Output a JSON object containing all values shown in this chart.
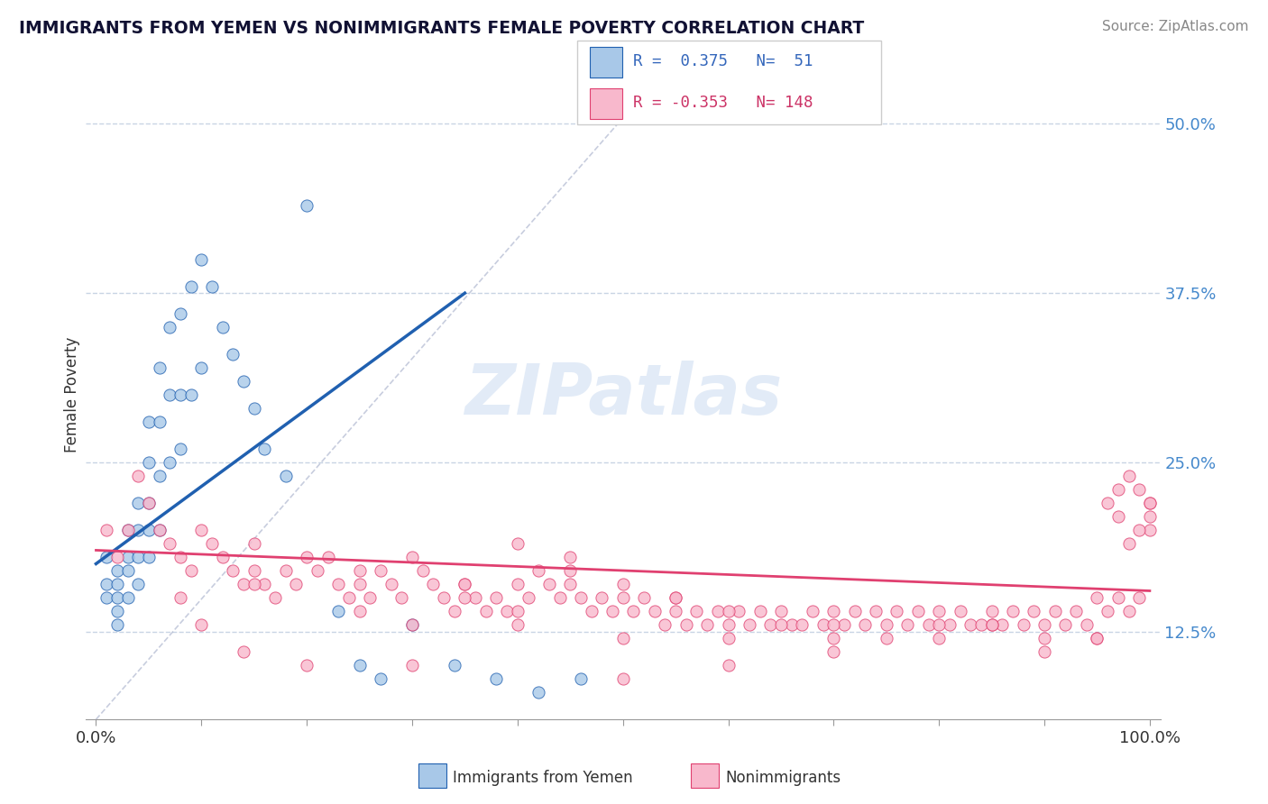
{
  "title": "IMMIGRANTS FROM YEMEN VS NONIMMIGRANTS FEMALE POVERTY CORRELATION CHART",
  "source": "Source: ZipAtlas.com",
  "ylabel": "Female Poverty",
  "xlim": [
    -0.01,
    1.01
  ],
  "ylim": [
    0.06,
    0.54
  ],
  "ytick_vals": [
    0.125,
    0.25,
    0.375,
    0.5
  ],
  "ytick_labels": [
    "12.5%",
    "25.0%",
    "37.5%",
    "50.0%"
  ],
  "xtick_vals": [
    0.0,
    0.1,
    0.2,
    0.3,
    0.4,
    0.5,
    0.6,
    0.7,
    0.8,
    0.9,
    1.0
  ],
  "xtick_labels": [
    "0.0%",
    "",
    "",
    "",
    "",
    "",
    "",
    "",
    "",
    "",
    "100.0%"
  ],
  "color_blue": "#a8c8e8",
  "color_pink": "#f8b8cc",
  "line_blue": "#2060b0",
  "line_pink": "#e04070",
  "line_diag": "#b0b8d0",
  "watermark": "ZIPatlas",
  "background_color": "#ffffff",
  "grid_color": "#c8d4e4",
  "blue_x": [
    0.01,
    0.01,
    0.01,
    0.02,
    0.02,
    0.02,
    0.02,
    0.02,
    0.03,
    0.03,
    0.03,
    0.03,
    0.04,
    0.04,
    0.04,
    0.04,
    0.05,
    0.05,
    0.05,
    0.05,
    0.05,
    0.06,
    0.06,
    0.06,
    0.06,
    0.07,
    0.07,
    0.07,
    0.08,
    0.08,
    0.08,
    0.09,
    0.09,
    0.1,
    0.1,
    0.11,
    0.12,
    0.13,
    0.14,
    0.15,
    0.16,
    0.18,
    0.2,
    0.23,
    0.25,
    0.27,
    0.3,
    0.34,
    0.38,
    0.42,
    0.46
  ],
  "blue_y": [
    0.18,
    0.16,
    0.15,
    0.17,
    0.16,
    0.15,
    0.14,
    0.13,
    0.2,
    0.18,
    0.17,
    0.15,
    0.22,
    0.2,
    0.18,
    0.16,
    0.28,
    0.25,
    0.22,
    0.2,
    0.18,
    0.32,
    0.28,
    0.24,
    0.2,
    0.35,
    0.3,
    0.25,
    0.36,
    0.3,
    0.26,
    0.38,
    0.3,
    0.4,
    0.32,
    0.38,
    0.35,
    0.33,
    0.31,
    0.29,
    0.26,
    0.24,
    0.44,
    0.14,
    0.1,
    0.09,
    0.13,
    0.1,
    0.09,
    0.08,
    0.09
  ],
  "pink_x": [
    0.01,
    0.02,
    0.03,
    0.04,
    0.05,
    0.06,
    0.07,
    0.08,
    0.09,
    0.1,
    0.11,
    0.12,
    0.13,
    0.14,
    0.15,
    0.16,
    0.17,
    0.18,
    0.19,
    0.2,
    0.21,
    0.22,
    0.23,
    0.24,
    0.25,
    0.26,
    0.27,
    0.28,
    0.29,
    0.3,
    0.31,
    0.32,
    0.33,
    0.34,
    0.35,
    0.36,
    0.37,
    0.38,
    0.39,
    0.4,
    0.41,
    0.42,
    0.43,
    0.44,
    0.45,
    0.46,
    0.47,
    0.48,
    0.49,
    0.5,
    0.51,
    0.52,
    0.53,
    0.54,
    0.55,
    0.56,
    0.57,
    0.58,
    0.59,
    0.6,
    0.61,
    0.62,
    0.63,
    0.64,
    0.65,
    0.66,
    0.67,
    0.68,
    0.69,
    0.7,
    0.71,
    0.72,
    0.73,
    0.74,
    0.75,
    0.76,
    0.77,
    0.78,
    0.79,
    0.8,
    0.81,
    0.82,
    0.83,
    0.84,
    0.85,
    0.86,
    0.87,
    0.88,
    0.89,
    0.9,
    0.91,
    0.92,
    0.93,
    0.94,
    0.95,
    0.96,
    0.97,
    0.98,
    0.99,
    1.0,
    0.15,
    0.25,
    0.35,
    0.4,
    0.45,
    0.5,
    0.55,
    0.6,
    0.65,
    0.7,
    0.75,
    0.8,
    0.85,
    0.9,
    0.95,
    1.0,
    0.97,
    0.98,
    0.99,
    1.0,
    0.96,
    0.97,
    0.98,
    0.99,
    1.0,
    0.3,
    0.5,
    0.14,
    0.85,
    0.7,
    0.6,
    0.4,
    0.2,
    0.1,
    0.55,
    0.45,
    0.35,
    0.25,
    0.15,
    0.08,
    0.9,
    0.8,
    0.7,
    0.6,
    0.5,
    0.4,
    0.3,
    0.95
  ],
  "pink_y": [
    0.2,
    0.18,
    0.2,
    0.24,
    0.22,
    0.2,
    0.19,
    0.18,
    0.17,
    0.2,
    0.19,
    0.18,
    0.17,
    0.16,
    0.17,
    0.16,
    0.15,
    0.17,
    0.16,
    0.18,
    0.17,
    0.18,
    0.16,
    0.15,
    0.16,
    0.15,
    0.17,
    0.16,
    0.15,
    0.18,
    0.17,
    0.16,
    0.15,
    0.14,
    0.16,
    0.15,
    0.14,
    0.15,
    0.14,
    0.16,
    0.15,
    0.17,
    0.16,
    0.15,
    0.17,
    0.15,
    0.14,
    0.15,
    0.14,
    0.15,
    0.14,
    0.15,
    0.14,
    0.13,
    0.14,
    0.13,
    0.14,
    0.13,
    0.14,
    0.13,
    0.14,
    0.13,
    0.14,
    0.13,
    0.14,
    0.13,
    0.13,
    0.14,
    0.13,
    0.14,
    0.13,
    0.14,
    0.13,
    0.14,
    0.13,
    0.14,
    0.13,
    0.14,
    0.13,
    0.14,
    0.13,
    0.14,
    0.13,
    0.13,
    0.14,
    0.13,
    0.14,
    0.13,
    0.14,
    0.13,
    0.14,
    0.13,
    0.14,
    0.13,
    0.15,
    0.14,
    0.15,
    0.14,
    0.15,
    0.22,
    0.19,
    0.17,
    0.16,
    0.19,
    0.18,
    0.16,
    0.15,
    0.14,
    0.13,
    0.13,
    0.12,
    0.13,
    0.13,
    0.12,
    0.12,
    0.2,
    0.21,
    0.19,
    0.2,
    0.21,
    0.22,
    0.23,
    0.24,
    0.23,
    0.22,
    0.1,
    0.09,
    0.11,
    0.13,
    0.12,
    0.1,
    0.13,
    0.1,
    0.13,
    0.15,
    0.16,
    0.15,
    0.14,
    0.16,
    0.15,
    0.11,
    0.12,
    0.11,
    0.12,
    0.12,
    0.14,
    0.13,
    0.12
  ]
}
